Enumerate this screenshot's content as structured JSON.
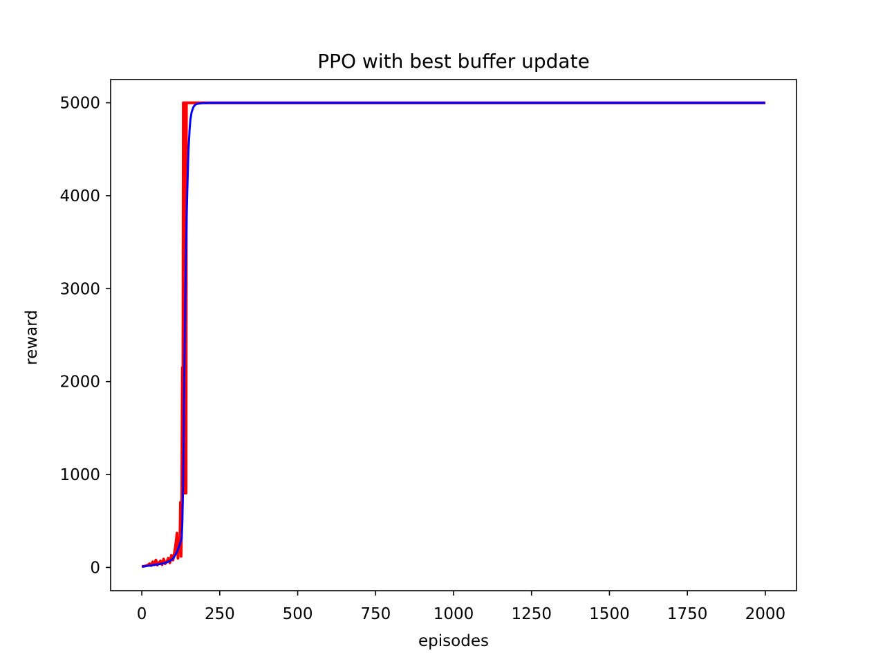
{
  "chart_data": {
    "type": "line",
    "title": "PPO with best buffer update",
    "xlabel": "episodes",
    "ylabel": "reward",
    "xlim": [
      -100,
      2100
    ],
    "ylim": [
      -250,
      5250
    ],
    "xticks": [
      0,
      250,
      500,
      750,
      1000,
      1250,
      1500,
      1750,
      2000
    ],
    "yticks": [
      0,
      1000,
      2000,
      3000,
      4000,
      5000
    ],
    "grid": false,
    "legend": "none",
    "series": [
      {
        "color": "#ff0000",
        "x": [
          0,
          10,
          20,
          25,
          30,
          35,
          40,
          45,
          50,
          55,
          60,
          65,
          70,
          75,
          80,
          85,
          90,
          95,
          100,
          105,
          110,
          113,
          116,
          119,
          122,
          124,
          126,
          128,
          130,
          131,
          132,
          133,
          134,
          135,
          136,
          137,
          138,
          139,
          140,
          141,
          142,
          143,
          144,
          145,
          146,
          147,
          148,
          150,
          2000
        ],
        "y": [
          10,
          15,
          25,
          40,
          20,
          60,
          30,
          80,
          25,
          50,
          70,
          30,
          90,
          40,
          60,
          100,
          50,
          130,
          80,
          160,
          280,
          370,
          100,
          300,
          200,
          700,
          120,
          600,
          2150,
          800,
          2200,
          5000,
          5000,
          5000,
          5000,
          800,
          5000,
          5000,
          5000,
          5000,
          800,
          5000,
          5000,
          5000,
          5000,
          5000,
          5000,
          5000,
          5000
        ]
      },
      {
        "color": "#0000ff",
        "x": [
          0,
          10,
          20,
          30,
          40,
          50,
          60,
          70,
          80,
          90,
          100,
          105,
          110,
          115,
          120,
          125,
          128,
          130,
          132,
          134,
          136,
          138,
          140,
          142,
          145,
          148,
          150,
          153,
          156,
          160,
          165,
          170,
          175,
          180,
          190,
          200,
          220,
          250,
          300,
          2000
        ],
        "y": [
          10,
          12,
          18,
          22,
          28,
          32,
          38,
          45,
          55,
          70,
          95,
          120,
          150,
          185,
          230,
          280,
          320,
          480,
          800,
          1300,
          2000,
          2500,
          3000,
          3450,
          3950,
          4300,
          4500,
          4700,
          4820,
          4900,
          4950,
          4975,
          4985,
          4990,
          4995,
          4998,
          5000,
          5000,
          5000,
          5000
        ]
      }
    ]
  }
}
